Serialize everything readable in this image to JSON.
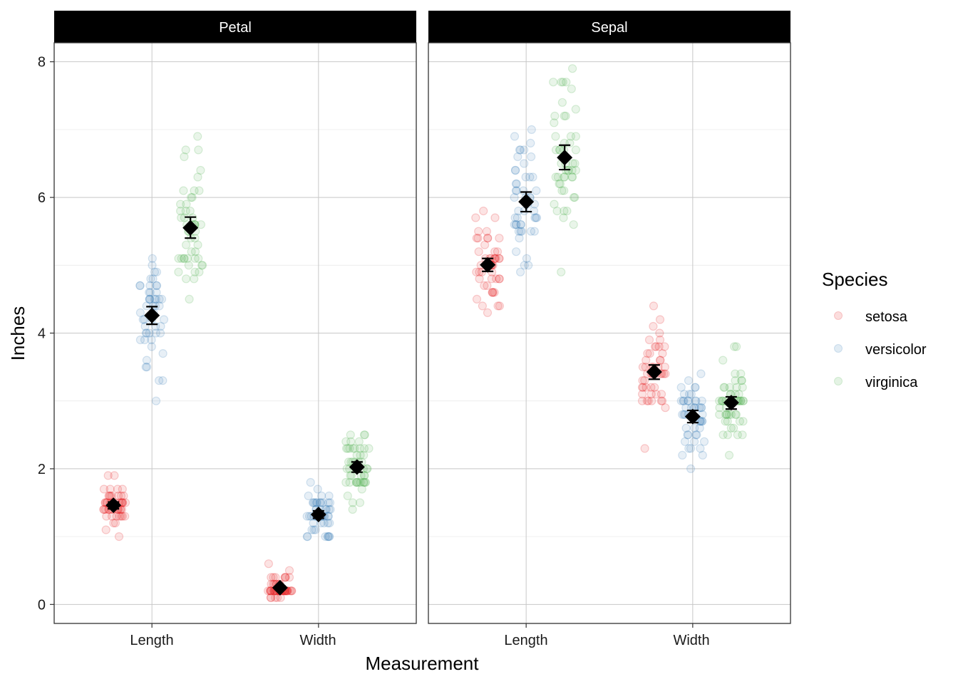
{
  "chart_data": {
    "type": "scatter",
    "xlabel": "Measurement",
    "ylabel": "Inches",
    "ylim": [
      -0.28,
      8.28
    ],
    "yticks": [
      0,
      2,
      4,
      6,
      8
    ],
    "categories": [
      "Length",
      "Width"
    ],
    "grid": true,
    "legend": {
      "title": "Species",
      "placement": "right",
      "entries": [
        "setosa",
        "versicolor",
        "virginica"
      ]
    },
    "colors": {
      "setosa": "#E41A1C",
      "versicolor": "#377EB8",
      "virginica": "#4DAF4A",
      "mean": "#000000",
      "strip": "#000000"
    },
    "facets": [
      {
        "name": "Petal",
        "groups": [
          {
            "category": "Length",
            "species": "setosa",
            "mean": 1.462,
            "ci": [
              1.41,
              1.51
            ],
            "values": [
              1.4,
              1.4,
              1.3,
              1.5,
              1.4,
              1.7,
              1.4,
              1.5,
              1.4,
              1.5,
              1.5,
              1.6,
              1.4,
              1.1,
              1.2,
              1.5,
              1.3,
              1.4,
              1.7,
              1.5,
              1.7,
              1.5,
              1.0,
              1.7,
              1.9,
              1.6,
              1.6,
              1.5,
              1.4,
              1.6,
              1.6,
              1.5,
              1.5,
              1.4,
              1.5,
              1.2,
              1.3,
              1.4,
              1.3,
              1.5,
              1.3,
              1.3,
              1.3,
              1.6,
              1.9,
              1.4,
              1.6,
              1.4,
              1.5,
              1.4
            ]
          },
          {
            "category": "Length",
            "species": "versicolor",
            "mean": 4.26,
            "ci": [
              4.13,
              4.39
            ],
            "values": [
              4.7,
              4.5,
              4.9,
              4.0,
              4.6,
              4.5,
              4.7,
              3.3,
              4.6,
              3.9,
              3.5,
              4.2,
              4.0,
              4.7,
              3.6,
              4.4,
              4.5,
              4.1,
              4.5,
              3.9,
              4.8,
              4.0,
              4.9,
              4.7,
              4.3,
              4.4,
              4.8,
              5.0,
              4.5,
              3.5,
              3.8,
              3.7,
              3.9,
              5.1,
              4.5,
              4.5,
              4.7,
              4.4,
              4.1,
              4.0,
              4.4,
              4.6,
              4.0,
              3.3,
              4.2,
              4.2,
              4.2,
              4.3,
              3.0,
              4.1
            ]
          },
          {
            "category": "Length",
            "species": "virginica",
            "mean": 5.552,
            "ci": [
              5.4,
              5.71
            ],
            "values": [
              6.0,
              5.1,
              5.9,
              5.6,
              5.8,
              6.6,
              4.5,
              6.3,
              5.8,
              6.1,
              5.1,
              5.3,
              5.5,
              5.0,
              5.1,
              5.3,
              5.5,
              6.7,
              6.9,
              5.0,
              5.7,
              4.9,
              6.7,
              4.9,
              5.7,
              6.0,
              4.8,
              4.9,
              5.6,
              5.8,
              6.1,
              6.4,
              5.6,
              5.1,
              5.6,
              6.1,
              5.6,
              5.5,
              4.8,
              5.4,
              5.6,
              5.1,
              5.1,
              5.9,
              5.7,
              5.2,
              5.0,
              5.2,
              5.4,
              5.1
            ]
          },
          {
            "category": "Width",
            "species": "setosa",
            "mean": 0.246,
            "ci": [
              0.22,
              0.27
            ],
            "values": [
              0.2,
              0.2,
              0.2,
              0.2,
              0.2,
              0.4,
              0.3,
              0.2,
              0.2,
              0.1,
              0.2,
              0.2,
              0.1,
              0.1,
              0.2,
              0.4,
              0.4,
              0.3,
              0.3,
              0.3,
              0.2,
              0.4,
              0.2,
              0.5,
              0.2,
              0.2,
              0.4,
              0.2,
              0.2,
              0.2,
              0.2,
              0.4,
              0.1,
              0.2,
              0.2,
              0.2,
              0.2,
              0.1,
              0.2,
              0.2,
              0.3,
              0.3,
              0.2,
              0.6,
              0.4,
              0.3,
              0.2,
              0.2,
              0.2,
              0.2
            ]
          },
          {
            "category": "Width",
            "species": "versicolor",
            "mean": 1.326,
            "ci": [
              1.27,
              1.38
            ],
            "values": [
              1.4,
              1.5,
              1.5,
              1.3,
              1.5,
              1.3,
              1.6,
              1.0,
              1.3,
              1.4,
              1.0,
              1.5,
              1.0,
              1.4,
              1.3,
              1.4,
              1.5,
              1.0,
              1.5,
              1.1,
              1.8,
              1.3,
              1.5,
              1.2,
              1.3,
              1.4,
              1.4,
              1.7,
              1.5,
              1.0,
              1.1,
              1.0,
              1.2,
              1.6,
              1.5,
              1.6,
              1.5,
              1.3,
              1.3,
              1.3,
              1.2,
              1.4,
              1.2,
              1.0,
              1.3,
              1.2,
              1.3,
              1.3,
              1.1,
              1.3
            ]
          },
          {
            "category": "Width",
            "species": "virginica",
            "mean": 2.026,
            "ci": [
              1.95,
              2.1
            ],
            "values": [
              2.5,
              1.9,
              2.1,
              1.8,
              2.2,
              2.1,
              1.7,
              1.8,
              1.8,
              2.5,
              2.0,
              1.9,
              2.1,
              2.0,
              2.4,
              2.3,
              1.8,
              2.2,
              2.3,
              1.5,
              2.3,
              2.0,
              2.0,
              1.8,
              2.1,
              1.8,
              1.8,
              1.8,
              2.1,
              1.6,
              1.9,
              2.0,
              2.2,
              1.5,
              1.4,
              2.3,
              2.4,
              1.8,
              1.8,
              2.1,
              2.4,
              2.3,
              1.9,
              2.3,
              2.5,
              2.3,
              1.9,
              2.0,
              2.3,
              1.8
            ]
          }
        ]
      },
      {
        "name": "Sepal",
        "groups": [
          {
            "category": "Length",
            "species": "setosa",
            "mean": 5.006,
            "ci": [
              4.91,
              5.1
            ],
            "values": [
              5.1,
              4.9,
              4.7,
              4.6,
              5.0,
              5.4,
              4.6,
              5.0,
              4.4,
              4.9,
              5.4,
              4.8,
              4.8,
              4.3,
              5.8,
              5.7,
              5.4,
              5.1,
              5.7,
              5.1,
              5.4,
              5.1,
              4.6,
              5.1,
              4.8,
              5.0,
              5.0,
              5.2,
              5.2,
              4.7,
              4.8,
              5.4,
              5.2,
              5.5,
              4.9,
              5.0,
              5.5,
              4.9,
              4.4,
              5.1,
              5.0,
              4.5,
              4.4,
              5.0,
              5.1,
              4.8,
              5.1,
              4.6,
              5.3,
              5.0
            ]
          },
          {
            "category": "Length",
            "species": "versicolor",
            "mean": 5.936,
            "ci": [
              5.79,
              6.08
            ],
            "values": [
              7.0,
              6.4,
              6.9,
              5.5,
              6.5,
              5.7,
              6.3,
              4.9,
              6.6,
              5.2,
              5.0,
              5.9,
              6.0,
              6.1,
              5.6,
              6.7,
              5.6,
              5.8,
              6.2,
              5.6,
              5.9,
              6.1,
              6.3,
              6.1,
              6.4,
              6.6,
              6.8,
              6.7,
              6.0,
              5.7,
              5.5,
              5.5,
              5.8,
              6.0,
              5.4,
              6.0,
              6.7,
              6.3,
              5.6,
              5.5,
              5.5,
              6.1,
              5.8,
              5.0,
              5.6,
              5.7,
              5.7,
              6.2,
              5.1,
              5.7
            ]
          },
          {
            "category": "Length",
            "species": "virginica",
            "mean": 6.588,
            "ci": [
              6.41,
              6.77
            ],
            "values": [
              6.3,
              5.8,
              7.1,
              6.3,
              6.5,
              7.6,
              4.9,
              7.3,
              6.7,
              7.2,
              6.5,
              6.4,
              6.8,
              5.7,
              5.8,
              6.4,
              6.5,
              7.7,
              7.7,
              6.0,
              6.9,
              5.6,
              7.7,
              6.3,
              6.7,
              7.2,
              6.2,
              6.1,
              6.4,
              7.2,
              7.4,
              7.9,
              6.4,
              6.3,
              6.1,
              7.7,
              6.3,
              6.4,
              6.0,
              6.9,
              6.7,
              6.9,
              5.8,
              6.8,
              6.7,
              6.7,
              6.3,
              6.5,
              6.2,
              5.9
            ]
          },
          {
            "category": "Width",
            "species": "setosa",
            "mean": 3.428,
            "ci": [
              3.32,
              3.53
            ],
            "values": [
              3.5,
              3.0,
              3.2,
              3.1,
              3.6,
              3.9,
              3.4,
              3.4,
              2.9,
              3.1,
              3.7,
              3.4,
              3.0,
              3.0,
              4.0,
              4.4,
              3.9,
              3.5,
              3.8,
              3.8,
              3.4,
              3.7,
              3.6,
              3.3,
              3.4,
              3.0,
              3.4,
              3.5,
              3.4,
              3.2,
              3.1,
              3.4,
              4.1,
              4.2,
              3.1,
              3.2,
              3.5,
              3.6,
              3.0,
              3.4,
              3.5,
              2.3,
              3.2,
              3.5,
              3.8,
              3.0,
              3.8,
              3.2,
              3.7,
              3.3
            ]
          },
          {
            "category": "Width",
            "species": "versicolor",
            "mean": 2.77,
            "ci": [
              2.68,
              2.86
            ],
            "values": [
              3.2,
              3.2,
              3.1,
              2.3,
              2.8,
              2.8,
              3.3,
              2.4,
              2.9,
              2.7,
              2.0,
              3.0,
              2.2,
              2.9,
              2.9,
              3.1,
              3.0,
              2.7,
              2.2,
              2.5,
              3.2,
              2.8,
              2.5,
              2.8,
              2.9,
              3.0,
              2.8,
              3.0,
              2.9,
              2.6,
              2.4,
              2.4,
              2.7,
              2.7,
              3.0,
              3.4,
              3.1,
              2.3,
              3.0,
              2.5,
              2.6,
              3.0,
              2.6,
              2.3,
              2.7,
              3.0,
              2.9,
              2.9,
              2.5,
              2.8
            ]
          },
          {
            "category": "Width",
            "species": "virginica",
            "mean": 2.974,
            "ci": [
              2.88,
              3.06
            ],
            "values": [
              3.3,
              2.7,
              3.0,
              2.9,
              3.0,
              3.0,
              2.5,
              2.9,
              2.5,
              3.6,
              3.2,
              2.7,
              3.0,
              2.5,
              2.8,
              3.2,
              3.0,
              3.8,
              2.6,
              2.2,
              3.2,
              2.8,
              2.8,
              2.7,
              3.3,
              3.2,
              2.8,
              3.0,
              2.8,
              3.0,
              2.8,
              3.8,
              2.8,
              2.8,
              2.6,
              3.0,
              3.4,
              3.1,
              3.0,
              3.1,
              3.1,
              3.1,
              2.7,
              3.2,
              3.3,
              3.0,
              2.5,
              3.0,
              3.4,
              3.0
            ]
          }
        ]
      }
    ]
  }
}
